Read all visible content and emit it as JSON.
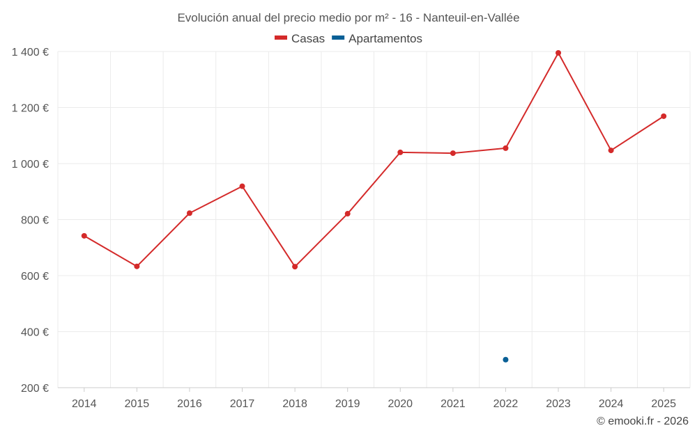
{
  "chart_data": {
    "type": "line",
    "title": "Evolución anual del precio medio por m² - 16 - Nanteuil-en-Vallée",
    "categories": [
      "2014",
      "2015",
      "2016",
      "2017",
      "2018",
      "2019",
      "2020",
      "2021",
      "2022",
      "2023",
      "2024",
      "2025"
    ],
    "series": [
      {
        "name": "Casas",
        "color": "#d42a2a",
        "values": [
          742,
          633,
          823,
          919,
          632,
          821,
          1040,
          1037,
          1055,
          1395,
          1047,
          1169
        ]
      },
      {
        "name": "Apartamentos",
        "color": "#0a6096",
        "values": [
          null,
          null,
          null,
          null,
          null,
          null,
          null,
          null,
          300,
          null,
          null,
          null
        ]
      }
    ],
    "ylim": [
      200,
      1400
    ],
    "yticks": [
      200,
      400,
      600,
      800,
      1000,
      1200,
      1400
    ],
    "ytick_labels": [
      "200 €",
      "400 €",
      "600 €",
      "800 €",
      "1 000 €",
      "1 200 €",
      "1 400 €"
    ],
    "xlabel": "",
    "ylabel": "",
    "grid": true,
    "legend_position": "top-center"
  },
  "credit": "© emooki.fr - 2026"
}
